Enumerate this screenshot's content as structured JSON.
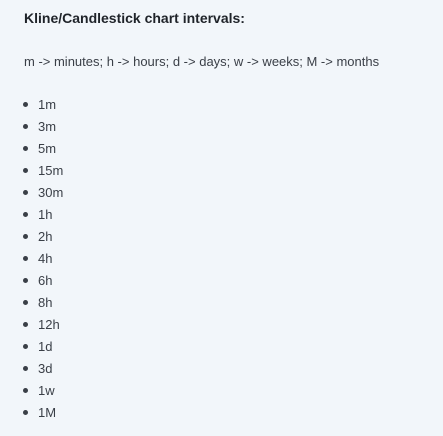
{
  "heading": "Kline/Candlestick chart intervals:",
  "legend": "m -> minutes; h -> hours; d -> days; w -> weeks; M -> months",
  "intervals": [
    "1m",
    "3m",
    "5m",
    "15m",
    "30m",
    "1h",
    "2h",
    "4h",
    "6h",
    "8h",
    "12h",
    "1d",
    "3d",
    "1w",
    "1M"
  ]
}
